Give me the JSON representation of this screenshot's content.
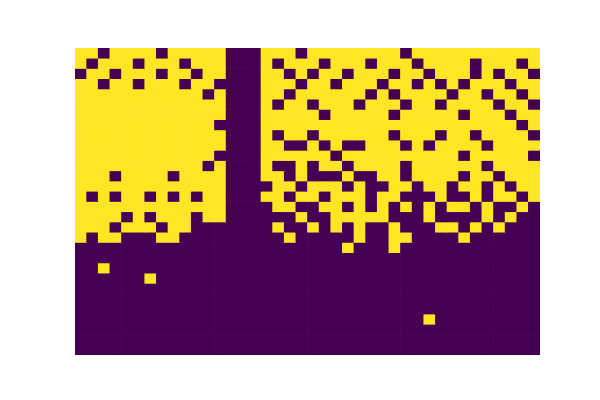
{
  "chart_data": {
    "type": "heatmap",
    "tick_labels": false,
    "grid": false,
    "cells": [
      [
        1,
        1,
        0,
        1,
        1,
        1,
        1,
        0,
        1,
        1,
        1,
        1,
        1,
        0,
        0,
        0,
        1,
        1,
        1,
        0,
        1,
        1,
        1,
        1,
        1,
        1,
        1,
        1,
        0,
        1,
        1,
        1,
        1,
        1,
        1,
        1,
        1,
        1,
        1,
        1
      ],
      [
        1,
        0,
        1,
        1,
        1,
        0,
        1,
        1,
        1,
        0,
        1,
        1,
        1,
        0,
        0,
        0,
        1,
        0,
        1,
        1,
        1,
        0,
        1,
        1,
        1,
        0,
        1,
        1,
        1,
        0,
        1,
        1,
        1,
        1,
        0,
        1,
        1,
        1,
        0,
        1
      ],
      [
        0,
        1,
        1,
        0,
        1,
        1,
        1,
        0,
        1,
        1,
        0,
        1,
        1,
        0,
        0,
        0,
        1,
        1,
        0,
        1,
        0,
        1,
        1,
        0,
        1,
        1,
        1,
        0,
        1,
        1,
        0,
        1,
        1,
        1,
        0,
        1,
        0,
        1,
        1,
        0
      ],
      [
        1,
        1,
        0,
        1,
        1,
        0,
        1,
        1,
        1,
        0,
        1,
        1,
        0,
        0,
        0,
        0,
        1,
        1,
        1,
        0,
        1,
        1,
        0,
        1,
        1,
        1,
        0,
        1,
        1,
        0,
        1,
        0,
        1,
        0,
        1,
        1,
        1,
        0,
        1,
        1
      ],
      [
        1,
        1,
        1,
        1,
        1,
        1,
        1,
        1,
        1,
        1,
        1,
        0,
        1,
        0,
        0,
        0,
        1,
        1,
        0,
        1,
        1,
        1,
        1,
        1,
        1,
        0,
        1,
        0,
        1,
        1,
        1,
        1,
        0,
        1,
        1,
        0,
        1,
        1,
        0,
        1
      ],
      [
        1,
        1,
        1,
        1,
        1,
        1,
        1,
        1,
        1,
        1,
        1,
        1,
        1,
        0,
        0,
        0,
        1,
        0,
        1,
        1,
        0,
        1,
        1,
        1,
        0,
        1,
        1,
        1,
        0,
        1,
        1,
        0,
        1,
        1,
        1,
        1,
        0,
        1,
        1,
        0
      ],
      [
        1,
        1,
        1,
        1,
        1,
        1,
        1,
        1,
        1,
        1,
        1,
        1,
        1,
        0,
        0,
        0,
        1,
        1,
        1,
        1,
        1,
        0,
        1,
        1,
        1,
        1,
        1,
        0,
        1,
        1,
        1,
        1,
        1,
        0,
        1,
        1,
        1,
        0,
        1,
        1
      ],
      [
        1,
        1,
        1,
        1,
        1,
        1,
        1,
        1,
        1,
        1,
        1,
        1,
        0,
        0,
        0,
        0,
        1,
        1,
        1,
        1,
        1,
        1,
        1,
        1,
        1,
        1,
        1,
        1,
        1,
        1,
        1,
        1,
        1,
        1,
        1,
        1,
        1,
        1,
        0,
        1
      ],
      [
        1,
        1,
        1,
        1,
        1,
        1,
        1,
        1,
        1,
        1,
        1,
        1,
        1,
        0,
        0,
        0,
        1,
        0,
        1,
        1,
        0,
        1,
        1,
        1,
        1,
        1,
        1,
        0,
        1,
        1,
        1,
        0,
        1,
        1,
        0,
        1,
        1,
        1,
        1,
        0
      ],
      [
        1,
        1,
        1,
        1,
        1,
        1,
        1,
        1,
        1,
        1,
        1,
        1,
        1,
        0,
        0,
        0,
        1,
        1,
        0,
        0,
        1,
        0,
        1,
        0,
        0,
        1,
        1,
        1,
        0,
        1,
        0,
        1,
        1,
        1,
        1,
        0,
        1,
        1,
        1,
        1
      ],
      [
        1,
        1,
        1,
        1,
        1,
        1,
        1,
        1,
        1,
        1,
        1,
        1,
        0,
        0,
        0,
        0,
        1,
        1,
        1,
        1,
        1,
        1,
        0,
        1,
        1,
        1,
        1,
        1,
        1,
        1,
        1,
        1,
        1,
        0,
        1,
        1,
        1,
        1,
        1,
        0
      ],
      [
        1,
        1,
        1,
        1,
        1,
        1,
        1,
        1,
        1,
        1,
        1,
        0,
        1,
        0,
        0,
        0,
        1,
        0,
        0,
        1,
        0,
        1,
        1,
        0,
        1,
        1,
        1,
        1,
        0,
        1,
        1,
        1,
        1,
        1,
        1,
        0,
        1,
        1,
        1,
        1
      ],
      [
        1,
        1,
        1,
        0,
        1,
        1,
        1,
        1,
        0,
        1,
        1,
        1,
        1,
        0,
        0,
        0,
        1,
        1,
        0,
        1,
        0,
        0,
        0,
        1,
        0,
        0,
        1,
        1,
        0,
        1,
        1,
        1,
        1,
        0,
        1,
        1,
        0,
        1,
        1,
        1
      ],
      [
        1,
        1,
        1,
        1,
        1,
        1,
        1,
        1,
        1,
        1,
        1,
        1,
        1,
        0,
        0,
        0,
        0,
        1,
        1,
        0,
        1,
        1,
        1,
        0,
        1,
        0,
        0,
        1,
        1,
        0,
        1,
        1,
        0,
        1,
        1,
        0,
        1,
        0,
        1,
        1
      ],
      [
        1,
        0,
        1,
        0,
        1,
        1,
        0,
        1,
        0,
        1,
        0,
        1,
        1,
        0,
        0,
        0,
        1,
        1,
        0,
        1,
        1,
        0,
        1,
        1,
        1,
        0,
        1,
        1,
        0,
        0,
        0,
        1,
        0,
        0,
        1,
        0,
        1,
        1,
        0,
        1
      ],
      [
        1,
        1,
        1,
        1,
        1,
        1,
        1,
        1,
        1,
        1,
        1,
        1,
        1,
        0,
        0,
        0,
        0,
        1,
        1,
        0,
        0,
        1,
        1,
        0,
        1,
        0,
        1,
        0,
        1,
        0,
        1,
        0,
        1,
        1,
        0,
        1,
        0,
        0,
        1,
        0
      ],
      [
        1,
        1,
        1,
        1,
        0,
        1,
        0,
        1,
        1,
        1,
        0,
        1,
        1,
        0,
        0,
        0,
        0,
        0,
        0,
        1,
        0,
        0,
        1,
        1,
        1,
        1,
        1,
        0,
        0,
        0,
        1,
        0,
        0,
        0,
        0,
        1,
        0,
        1,
        0,
        0
      ],
      [
        1,
        1,
        1,
        0,
        1,
        1,
        1,
        0,
        1,
        1,
        0,
        0,
        0,
        0,
        0,
        0,
        0,
        1,
        0,
        0,
        1,
        0,
        1,
        0,
        1,
        0,
        0,
        1,
        0,
        0,
        0,
        1,
        1,
        0,
        1,
        0,
        1,
        0,
        0,
        0
      ],
      [
        1,
        0,
        1,
        1,
        0,
        0,
        0,
        1,
        1,
        0,
        0,
        0,
        0,
        0,
        0,
        0,
        0,
        0,
        1,
        0,
        0,
        0,
        0,
        0,
        1,
        0,
        0,
        1,
        1,
        0,
        0,
        0,
        0,
        1,
        0,
        0,
        0,
        0,
        0,
        0
      ],
      [
        0,
        0,
        0,
        0,
        0,
        0,
        0,
        0,
        0,
        0,
        0,
        0,
        0,
        0,
        0,
        0,
        0,
        0,
        0,
        0,
        0,
        0,
        0,
        1,
        0,
        0,
        0,
        1,
        0,
        0,
        0,
        0,
        0,
        0,
        0,
        0,
        0,
        0,
        0,
        0
      ],
      [
        0,
        0,
        0,
        0,
        0,
        0,
        0,
        0,
        0,
        0,
        0,
        0,
        0,
        0,
        0,
        0,
        0,
        0,
        0,
        0,
        0,
        0,
        0,
        0,
        0,
        0,
        0,
        0,
        0,
        0,
        0,
        0,
        0,
        0,
        0,
        0,
        0,
        0,
        0,
        0
      ],
      [
        0,
        0,
        1,
        0,
        0,
        0,
        0,
        0,
        0,
        0,
        0,
        0,
        0,
        0,
        0,
        0,
        0,
        0,
        0,
        0,
        0,
        0,
        0,
        0,
        0,
        0,
        0,
        0,
        0,
        0,
        0,
        0,
        0,
        0,
        0,
        0,
        0,
        0,
        0,
        0
      ],
      [
        0,
        0,
        0,
        0,
        0,
        0,
        1,
        0,
        0,
        0,
        0,
        0,
        0,
        0,
        0,
        0,
        0,
        0,
        0,
        0,
        0,
        0,
        0,
        0,
        0,
        0,
        0,
        0,
        0,
        0,
        0,
        0,
        0,
        0,
        0,
        0,
        0,
        0,
        0,
        0
      ],
      [
        0,
        0,
        0,
        0,
        0,
        0,
        0,
        0,
        0,
        0,
        0,
        0,
        0,
        0,
        0,
        0,
        0,
        0,
        0,
        0,
        0,
        0,
        0,
        0,
        0,
        0,
        0,
        0,
        0,
        0,
        0,
        0,
        0,
        0,
        0,
        0,
        0,
        0,
        0,
        0
      ],
      [
        0,
        0,
        0,
        0,
        0,
        0,
        0,
        0,
        0,
        0,
        0,
        0,
        0,
        0,
        0,
        0,
        0,
        0,
        0,
        0,
        0,
        0,
        0,
        0,
        0,
        0,
        0,
        0,
        0,
        0,
        0,
        0,
        0,
        0,
        0,
        0,
        0,
        0,
        0,
        0
      ],
      [
        0,
        0,
        0,
        0,
        0,
        0,
        0,
        0,
        0,
        0,
        0,
        0,
        0,
        0,
        0,
        0,
        0,
        0,
        0,
        0,
        0,
        0,
        0,
        0,
        0,
        0,
        0,
        0,
        0,
        0,
        0,
        0,
        0,
        0,
        0,
        0,
        0,
        0,
        0,
        0
      ],
      [
        0,
        0,
        0,
        0,
        0,
        0,
        0,
        0,
        0,
        0,
        0,
        0,
        0,
        0,
        0,
        0,
        0,
        0,
        0,
        0,
        0,
        0,
        0,
        0,
        0,
        0,
        0,
        0,
        0,
        0,
        1,
        0,
        0,
        0,
        0,
        0,
        0,
        0,
        0,
        0
      ],
      [
        0,
        0,
        0,
        0,
        0,
        0,
        0,
        0,
        0,
        0,
        0,
        0,
        0,
        0,
        0,
        0,
        0,
        0,
        0,
        0,
        0,
        0,
        0,
        0,
        0,
        0,
        0,
        0,
        0,
        0,
        0,
        0,
        0,
        0,
        0,
        0,
        0,
        0,
        0,
        0
      ],
      [
        0,
        0,
        0,
        0,
        0,
        0,
        0,
        0,
        0,
        0,
        0,
        0,
        0,
        0,
        0,
        0,
        0,
        0,
        0,
        0,
        0,
        0,
        0,
        0,
        0,
        0,
        0,
        0,
        0,
        0,
        0,
        0,
        0,
        0,
        0,
        0,
        0,
        0,
        0,
        0
      ],
      [
        0,
        0,
        0,
        0,
        0,
        0,
        0,
        0,
        0,
        0,
        0,
        0,
        0,
        0,
        0,
        0,
        0,
        0,
        0,
        0,
        0,
        0,
        0,
        0,
        0,
        0,
        0,
        0,
        0,
        0,
        0,
        0,
        0,
        0,
        0,
        0,
        0,
        0,
        0,
        0
      ]
    ]
  }
}
